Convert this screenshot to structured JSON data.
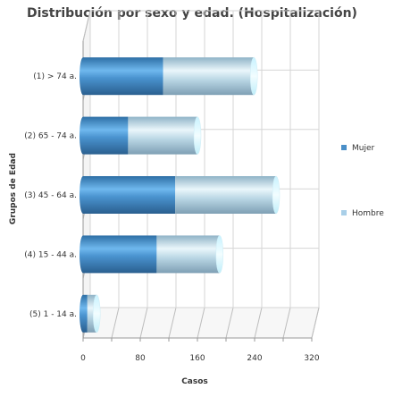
{
  "chart_data": {
    "type": "bar",
    "orientation": "horizontal",
    "stacked": true,
    "style": "3d-cylinder",
    "title": "Distribución por sexo y edad. (Hospitalización)",
    "xlabel": "Casos",
    "ylabel": "Grupos de Edad",
    "xlim": [
      0,
      320
    ],
    "xticks": [
      0,
      80,
      160,
      240,
      320
    ],
    "grid": true,
    "legend_position": "right",
    "categories": [
      "(1) > 74 a.",
      "(2) 65 - 74 a.",
      "(3) 45 - 64 a.",
      "(4) 15 - 44 a.",
      "(5) 1 - 14 a."
    ],
    "series": [
      {
        "name": "Mujer",
        "values": [
          112,
          63,
          129,
          103,
          6
        ],
        "color": "#4a8fc8"
      },
      {
        "name": "Hombre",
        "values": [
          127,
          97,
          141,
          88,
          13
        ],
        "color": "#a9cfe8"
      }
    ]
  }
}
